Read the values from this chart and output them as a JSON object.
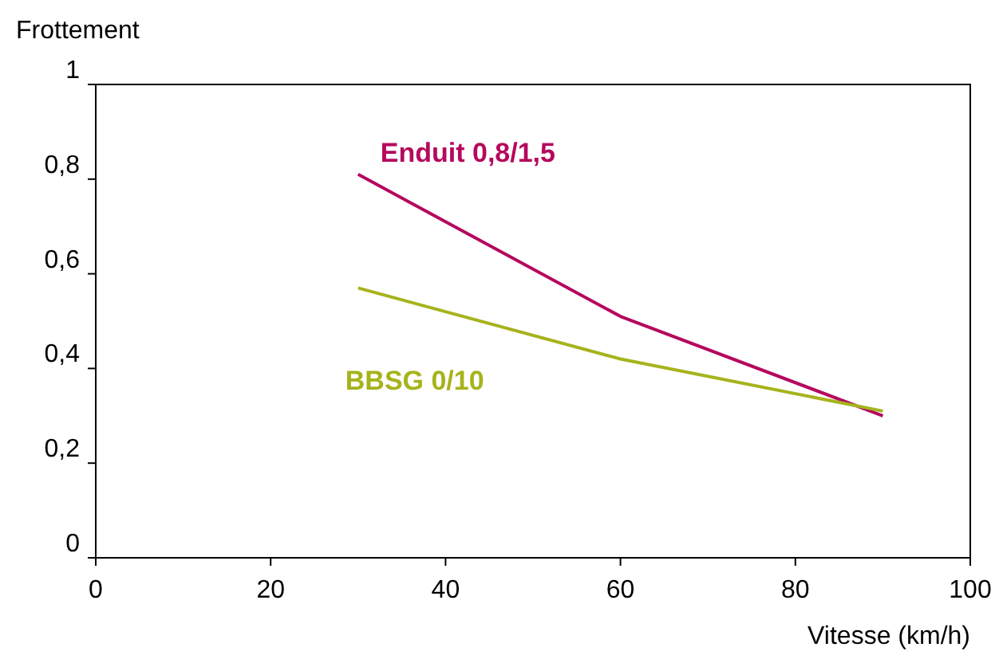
{
  "chart_data": {
    "type": "line",
    "xlabel": "Vitesse (km/h)",
    "ylabel": "Frottement",
    "x": [
      30,
      60,
      90
    ],
    "series": [
      {
        "name": "Enduit 0,8/1,5",
        "color": "#b5085e",
        "values": [
          0.81,
          0.51,
          0.3
        ]
      },
      {
        "name": "BBSG 0/10",
        "color": "#a6b31c",
        "values": [
          0.57,
          0.42,
          0.31
        ]
      }
    ],
    "xlim": [
      0,
      100
    ],
    "xticks": [
      0,
      20,
      40,
      60,
      80,
      100
    ],
    "ylim": [
      0,
      1
    ],
    "yticks": [
      0,
      {
        "value": 0.2,
        "label": "0,2"
      },
      {
        "value": 0.4,
        "label": "0,4"
      },
      {
        "value": 0.6,
        "label": "0,6"
      },
      {
        "value": 0.8,
        "label": "0,8"
      },
      1
    ],
    "grid": false,
    "legend": false,
    "marker": "none",
    "line_style": "solid"
  }
}
